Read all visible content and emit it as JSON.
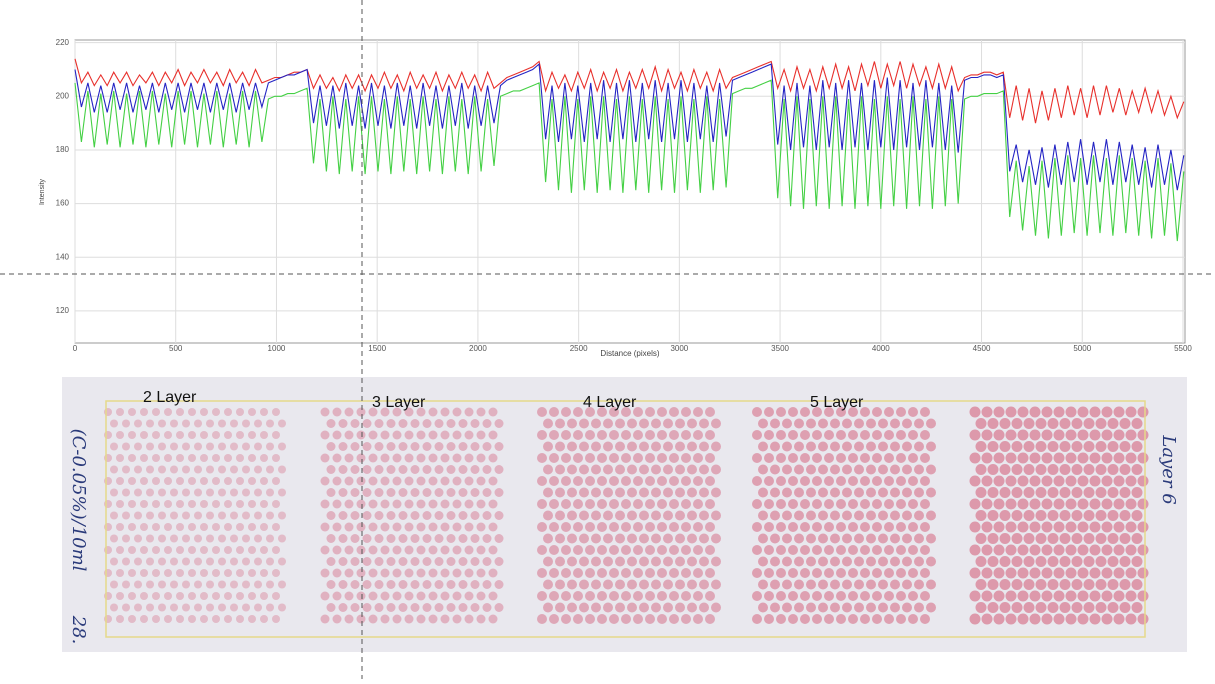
{
  "chart_data": {
    "type": "line",
    "xlabel": "Distance (pixels)",
    "ylabel": "Intensity",
    "xlim": [
      0,
      5510
    ],
    "ylim": [
      108,
      221
    ],
    "xticks": [
      0,
      500,
      1000,
      1500,
      2000,
      2500,
      3000,
      3500,
      4000,
      4500,
      5000,
      5500
    ],
    "yticks": [
      120,
      140,
      160,
      180,
      200,
      220
    ],
    "grid": true,
    "x": [
      0,
      32,
      64,
      96,
      128,
      160,
      192,
      224,
      256,
      288,
      320,
      352,
      384,
      416,
      448,
      480,
      512,
      544,
      576,
      608,
      640,
      672,
      704,
      736,
      768,
      800,
      832,
      864,
      896,
      928,
      960,
      992,
      1024,
      1056,
      1088,
      1120,
      1152,
      1184,
      1216,
      1248,
      1280,
      1312,
      1344,
      1376,
      1408,
      1440,
      1472,
      1504,
      1536,
      1568,
      1600,
      1632,
      1664,
      1696,
      1728,
      1760,
      1792,
      1824,
      1856,
      1888,
      1920,
      1952,
      1984,
      2016,
      2048,
      2080,
      2112,
      2144,
      2176,
      2208,
      2240,
      2272,
      2304,
      2336,
      2368,
      2400,
      2432,
      2464,
      2496,
      2528,
      2560,
      2592,
      2624,
      2656,
      2688,
      2720,
      2752,
      2784,
      2816,
      2848,
      2880,
      2912,
      2944,
      2976,
      3008,
      3040,
      3072,
      3104,
      3136,
      3168,
      3200,
      3232,
      3264,
      3296,
      3328,
      3360,
      3392,
      3424,
      3456,
      3488,
      3520,
      3552,
      3584,
      3616,
      3648,
      3680,
      3712,
      3744,
      3776,
      3808,
      3840,
      3872,
      3904,
      3936,
      3968,
      4000,
      4032,
      4064,
      4096,
      4128,
      4160,
      4192,
      4224,
      4256,
      4288,
      4320,
      4352,
      4384,
      4416,
      4448,
      4480,
      4512,
      4544,
      4576,
      4608,
      4640,
      4672,
      4704,
      4736,
      4768,
      4800,
      4832,
      4864,
      4896,
      4928,
      4960,
      4992,
      5024,
      5056,
      5088,
      5120,
      5152,
      5184,
      5216,
      5248,
      5280,
      5312,
      5344,
      5376,
      5408,
      5440,
      5472,
      5504
    ],
    "series": [
      {
        "color": "#e8302c",
        "values": [
          214,
          205,
          209,
          204,
          208,
          204,
          209,
          205,
          209,
          204,
          208,
          205,
          209,
          204,
          209,
          205,
          210,
          204,
          209,
          205,
          210,
          205,
          209,
          204,
          210,
          205,
          209,
          204,
          210,
          205,
          206,
          207,
          207,
          208,
          209,
          209,
          210,
          203,
          208,
          203,
          207,
          202,
          208,
          203,
          208,
          202,
          208,
          203,
          209,
          203,
          208,
          202,
          209,
          203,
          208,
          203,
          209,
          202,
          208,
          203,
          209,
          203,
          208,
          202,
          209,
          203,
          205,
          207,
          208,
          209,
          210,
          211,
          213,
          202,
          209,
          203,
          208,
          202,
          209,
          203,
          210,
          202,
          209,
          203,
          210,
          202,
          209,
          203,
          210,
          203,
          211,
          202,
          210,
          203,
          209,
          202,
          210,
          203,
          209,
          202,
          210,
          203,
          207,
          208,
          209,
          210,
          211,
          212,
          213,
          203,
          210,
          202,
          211,
          203,
          210,
          202,
          211,
          203,
          212,
          203,
          211,
          202,
          212,
          204,
          213,
          203,
          212,
          204,
          213,
          203,
          212,
          204,
          211,
          203,
          212,
          203,
          211,
          202,
          207,
          208,
          208,
          209,
          209,
          208,
          209,
          192,
          204,
          191,
          203,
          190,
          202,
          191,
          203,
          192,
          204,
          193,
          203,
          192,
          204,
          193,
          204,
          194,
          203,
          193,
          202,
          194,
          203,
          194,
          202,
          193,
          200,
          192,
          198
        ]
      },
      {
        "color": "#2424c4",
        "values": [
          210,
          196,
          205,
          194,
          204,
          194,
          205,
          195,
          205,
          194,
          204,
          195,
          205,
          194,
          205,
          195,
          205,
          194,
          205,
          195,
          205,
          194,
          205,
          195,
          205,
          194,
          205,
          195,
          205,
          196,
          205,
          206,
          207,
          208,
          208,
          209,
          210,
          190,
          204,
          189,
          204,
          188,
          205,
          189,
          204,
          188,
          205,
          189,
          204,
          188,
          205,
          189,
          204,
          188,
          205,
          189,
          204,
          188,
          204,
          189,
          205,
          188,
          204,
          189,
          204,
          190,
          204,
          206,
          207,
          208,
          209,
          210,
          212,
          184,
          204,
          183,
          205,
          184,
          204,
          183,
          205,
          184,
          206,
          183,
          205,
          184,
          206,
          183,
          205,
          184,
          206,
          183,
          205,
          184,
          206,
          183,
          205,
          184,
          204,
          183,
          205,
          185,
          206,
          207,
          208,
          209,
          210,
          211,
          212,
          182,
          204,
          180,
          205,
          181,
          204,
          180,
          206,
          181,
          205,
          180,
          206,
          181,
          205,
          180,
          206,
          181,
          207,
          180,
          206,
          181,
          205,
          180,
          206,
          181,
          205,
          180,
          204,
          179,
          206,
          207,
          207,
          208,
          208,
          207,
          208,
          172,
          182,
          168,
          180,
          167,
          181,
          166,
          182,
          167,
          183,
          168,
          184,
          167,
          183,
          168,
          184,
          167,
          183,
          168,
          182,
          167,
          181,
          166,
          182,
          167,
          180,
          165,
          178
        ]
      },
      {
        "color": "#44d044",
        "values": [
          205,
          183,
          202,
          181,
          201,
          182,
          202,
          181,
          201,
          182,
          202,
          181,
          202,
          182,
          201,
          181,
          202,
          182,
          202,
          181,
          201,
          182,
          202,
          181,
          201,
          182,
          202,
          181,
          202,
          183,
          199,
          200,
          200,
          201,
          201,
          202,
          203,
          175,
          199,
          172,
          200,
          171,
          199,
          172,
          200,
          171,
          200,
          172,
          199,
          171,
          200,
          172,
          199,
          171,
          200,
          172,
          199,
          171,
          200,
          172,
          199,
          171,
          200,
          172,
          199,
          174,
          200,
          201,
          202,
          202,
          203,
          204,
          205,
          168,
          199,
          165,
          200,
          164,
          199,
          165,
          200,
          164,
          200,
          165,
          199,
          164,
          200,
          165,
          199,
          164,
          200,
          165,
          199,
          164,
          200,
          165,
          199,
          164,
          200,
          165,
          199,
          166,
          201,
          202,
          203,
          203,
          204,
          205,
          206,
          162,
          199,
          159,
          200,
          158,
          199,
          159,
          200,
          158,
          200,
          159,
          199,
          158,
          200,
          159,
          199,
          158,
          200,
          159,
          199,
          158,
          200,
          159,
          199,
          158,
          200,
          159,
          199,
          160,
          199,
          200,
          200,
          201,
          201,
          201,
          202,
          155,
          176,
          150,
          174,
          148,
          176,
          147,
          177,
          148,
          178,
          149,
          177,
          148,
          178,
          149,
          177,
          148,
          178,
          149,
          177,
          148,
          176,
          147,
          177,
          148,
          175,
          146,
          172
        ]
      }
    ]
  },
  "photo": {
    "labels": [
      "2 Layer",
      "3 Layer",
      "4 Layer",
      "5 Layer"
    ],
    "side_label": "Layer 6",
    "note": "(C-0.05%)/10ml",
    "date": "28."
  }
}
